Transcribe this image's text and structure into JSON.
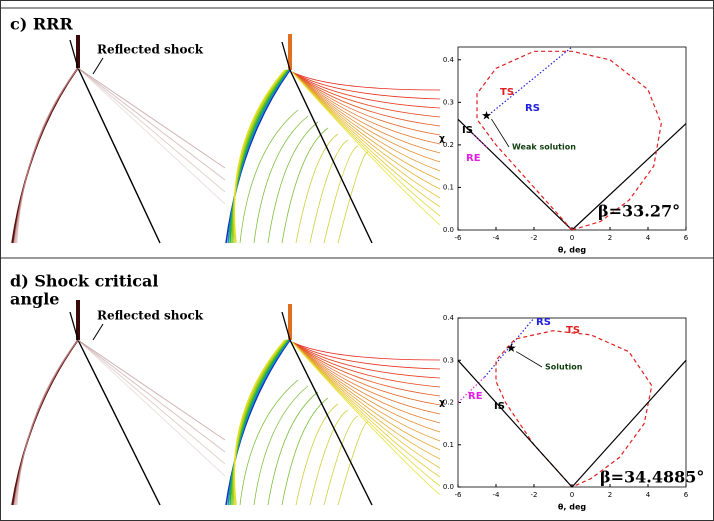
{
  "panels": [
    {
      "title_lines": [
        "c) RRR"
      ],
      "annotation": "Reflected shock",
      "plot": {
        "xlim": [
          -6,
          6
        ],
        "ylim": [
          0,
          0.43
        ],
        "xticks": [
          -6,
          -4,
          -2,
          0,
          2,
          4,
          6
        ],
        "yticks": [
          {
            "value": 0,
            "label": "0.0"
          },
          {
            "value": 0.1,
            "label": "0.1"
          },
          {
            "value": 0.2,
            "label": "0.2"
          },
          {
            "value": 0.3,
            "label": "0.3"
          },
          {
            "value": 0.4,
            "label": "0.4"
          }
        ],
        "xlabel": "θ, deg",
        "ylabel": "χ",
        "series": [
          {
            "name": "IS",
            "color": "#000000",
            "style": "solid",
            "x": [
              -6,
              0,
              6
            ],
            "values": [
              0.26,
              0,
              0.25
            ]
          },
          {
            "name": "TS",
            "color": "#e02020",
            "style": "dashed",
            "x": [
              0,
              -2,
              -4,
              -5,
              -5,
              -4,
              -2,
              0,
              2,
              4,
              4.7,
              4.3,
              3,
              1.5,
              0
            ],
            "values": [
              0,
              0.1,
              0.2,
              0.26,
              0.32,
              0.38,
              0.42,
              0.42,
              0.4,
              0.33,
              0.25,
              0.15,
              0.07,
              0.02,
              0
            ]
          },
          {
            "name": "RS",
            "color": "#2020e0",
            "style": "dotted",
            "x": [
              -4.4,
              0
            ],
            "values": [
              0.27,
              0.43
            ]
          },
          {
            "name": "RE",
            "color": "#e020e0",
            "style": "dotted",
            "x": [
              -5.2,
              -4.4
            ],
            "values": [
              0.225,
              0.19
            ]
          }
        ],
        "point": {
          "label": "Weak solution",
          "x": -4.5,
          "y": 0.27
        },
        "beta": "β=33.27°"
      }
    },
    {
      "title_lines": [
        "d) Shock critical",
        "angle"
      ],
      "annotation": "Reflected shock",
      "plot": {
        "xlim": [
          -6,
          6
        ],
        "ylim": [
          0,
          0.4
        ],
        "xticks": [
          -6,
          -4,
          -2,
          0,
          2,
          4,
          6
        ],
        "yticks": [
          {
            "value": 0,
            "label": "0.0"
          },
          {
            "value": 0.1,
            "label": "0.1"
          },
          {
            "value": 0.2,
            "label": "0.2"
          },
          {
            "value": 0.3,
            "label": "0.3"
          },
          {
            "value": 0.4,
            "label": "0.4"
          }
        ],
        "xlabel": "θ, deg",
        "ylabel": "χ",
        "series": [
          {
            "name": "RS",
            "color": "#2020e0",
            "style": "dotted",
            "x": [
              -4.6,
              -2
            ],
            "values": [
              0.26,
              0.4
            ]
          },
          {
            "name": "TS",
            "color": "#e02020",
            "style": "dashed",
            "x": [
              0,
              -2,
              -3.5,
              -4,
              -4,
              -3,
              -1,
              1,
              3,
              4.2,
              3.8,
              2.5,
              1,
              0
            ],
            "values": [
              0,
              0.1,
              0.2,
              0.25,
              0.3,
              0.35,
              0.37,
              0.36,
              0.32,
              0.24,
              0.15,
              0.07,
              0.02,
              0
            ]
          },
          {
            "name": "RE",
            "color": "#e020e0",
            "style": "dotted",
            "x": [
              -6,
              -4.6
            ],
            "values": [
              0.2,
              0.26
            ]
          },
          {
            "name": "IS",
            "color": "#000000",
            "style": "solid",
            "x": [
              -6,
              0,
              6
            ],
            "values": [
              0.3,
              0,
              0.3
            ]
          }
        ],
        "point": {
          "label": "Solution",
          "x": -3.2,
          "y": 0.33
        },
        "beta": "β=34.4885°"
      }
    }
  ]
}
